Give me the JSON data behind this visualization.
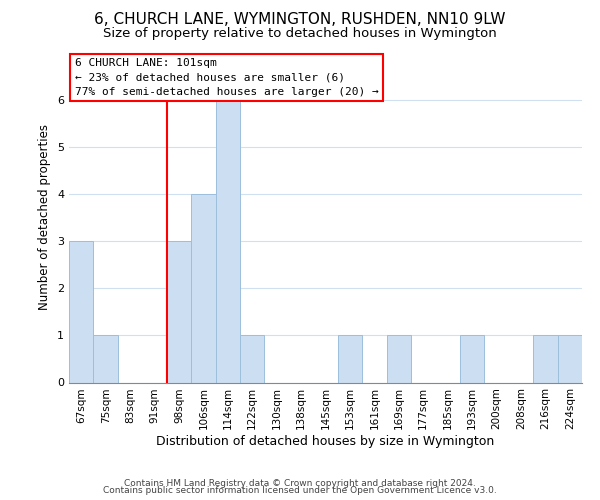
{
  "title": "6, CHURCH LANE, WYMINGTON, RUSHDEN, NN10 9LW",
  "subtitle": "Size of property relative to detached houses in Wymington",
  "xlabel": "Distribution of detached houses by size in Wymington",
  "ylabel": "Number of detached properties",
  "bar_labels": [
    "67sqm",
    "75sqm",
    "83sqm",
    "91sqm",
    "98sqm",
    "106sqm",
    "114sqm",
    "122sqm",
    "130sqm",
    "138sqm",
    "145sqm",
    "153sqm",
    "161sqm",
    "169sqm",
    "177sqm",
    "185sqm",
    "193sqm",
    "200sqm",
    "208sqm",
    "216sqm",
    "224sqm"
  ],
  "bar_values": [
    3,
    1,
    0,
    0,
    3,
    4,
    6,
    1,
    0,
    0,
    0,
    1,
    0,
    1,
    0,
    0,
    1,
    0,
    0,
    1,
    1
  ],
  "bar_color": "#ccdff2",
  "bar_edge_color": "#9dbfdc",
  "ylim": [
    0,
    7
  ],
  "yticks": [
    0,
    1,
    2,
    3,
    4,
    5,
    6,
    7
  ],
  "red_line_index": 4,
  "annotation_text": "6 CHURCH LANE: 101sqm\n← 23% of detached houses are smaller (6)\n77% of semi-detached houses are larger (20) →",
  "footer_line1": "Contains HM Land Registry data © Crown copyright and database right 2024.",
  "footer_line2": "Contains public sector information licensed under the Open Government Licence v3.0.",
  "title_fontsize": 11,
  "subtitle_fontsize": 9.5,
  "ylabel_fontsize": 8.5,
  "xlabel_fontsize": 9,
  "tick_fontsize": 7.5,
  "ann_fontsize": 8,
  "footer_fontsize": 6.5,
  "background_color": "#ffffff",
  "grid_color": "#cfe0f0"
}
